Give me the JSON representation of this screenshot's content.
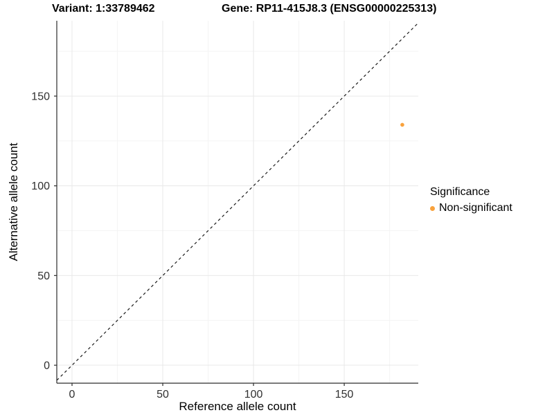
{
  "figure": {
    "title_variant": "Variant: 1:33789462",
    "title_gene": "Gene: RP11-415J8.3 (ENSG00000225313)"
  },
  "legend": {
    "title": "Significance",
    "items": [
      {
        "label": "Non-significant",
        "color": "#F9A23C"
      }
    ]
  },
  "colors": {
    "point": "#F9A23C",
    "grid_major": "#E8E8E8",
    "grid_minor": "#F4F4F4",
    "axis_line": "#2B2B2B",
    "tick_text": "#303030",
    "identity_line": "#1A1A1A",
    "background": "#FFFFFF"
  },
  "chart_data": {
    "type": "scatter",
    "title": "Variant: 1:33789462 / Gene: RP11-415J8.3 (ENSG00000225313)",
    "xlabel": "Reference allele count",
    "ylabel": "Alternative allele count",
    "xlim": [
      -8.4,
      190.8
    ],
    "ylim": [
      -10,
      192
    ],
    "x_ticks": [
      0,
      50,
      100,
      150
    ],
    "y_ticks": [
      0,
      50,
      100,
      150
    ],
    "x_minor_ticks": [
      25,
      75,
      125,
      175
    ],
    "y_minor_ticks": [
      25,
      75,
      125,
      175
    ],
    "grid": true,
    "legend_position": "right",
    "reference_line": {
      "type": "identity",
      "slope": 1,
      "intercept": 0,
      "style": "dashed"
    },
    "series": [
      {
        "name": "Non-significant",
        "color": "#F9A23C",
        "points": [
          {
            "x": 182,
            "y": 134
          }
        ]
      }
    ]
  }
}
